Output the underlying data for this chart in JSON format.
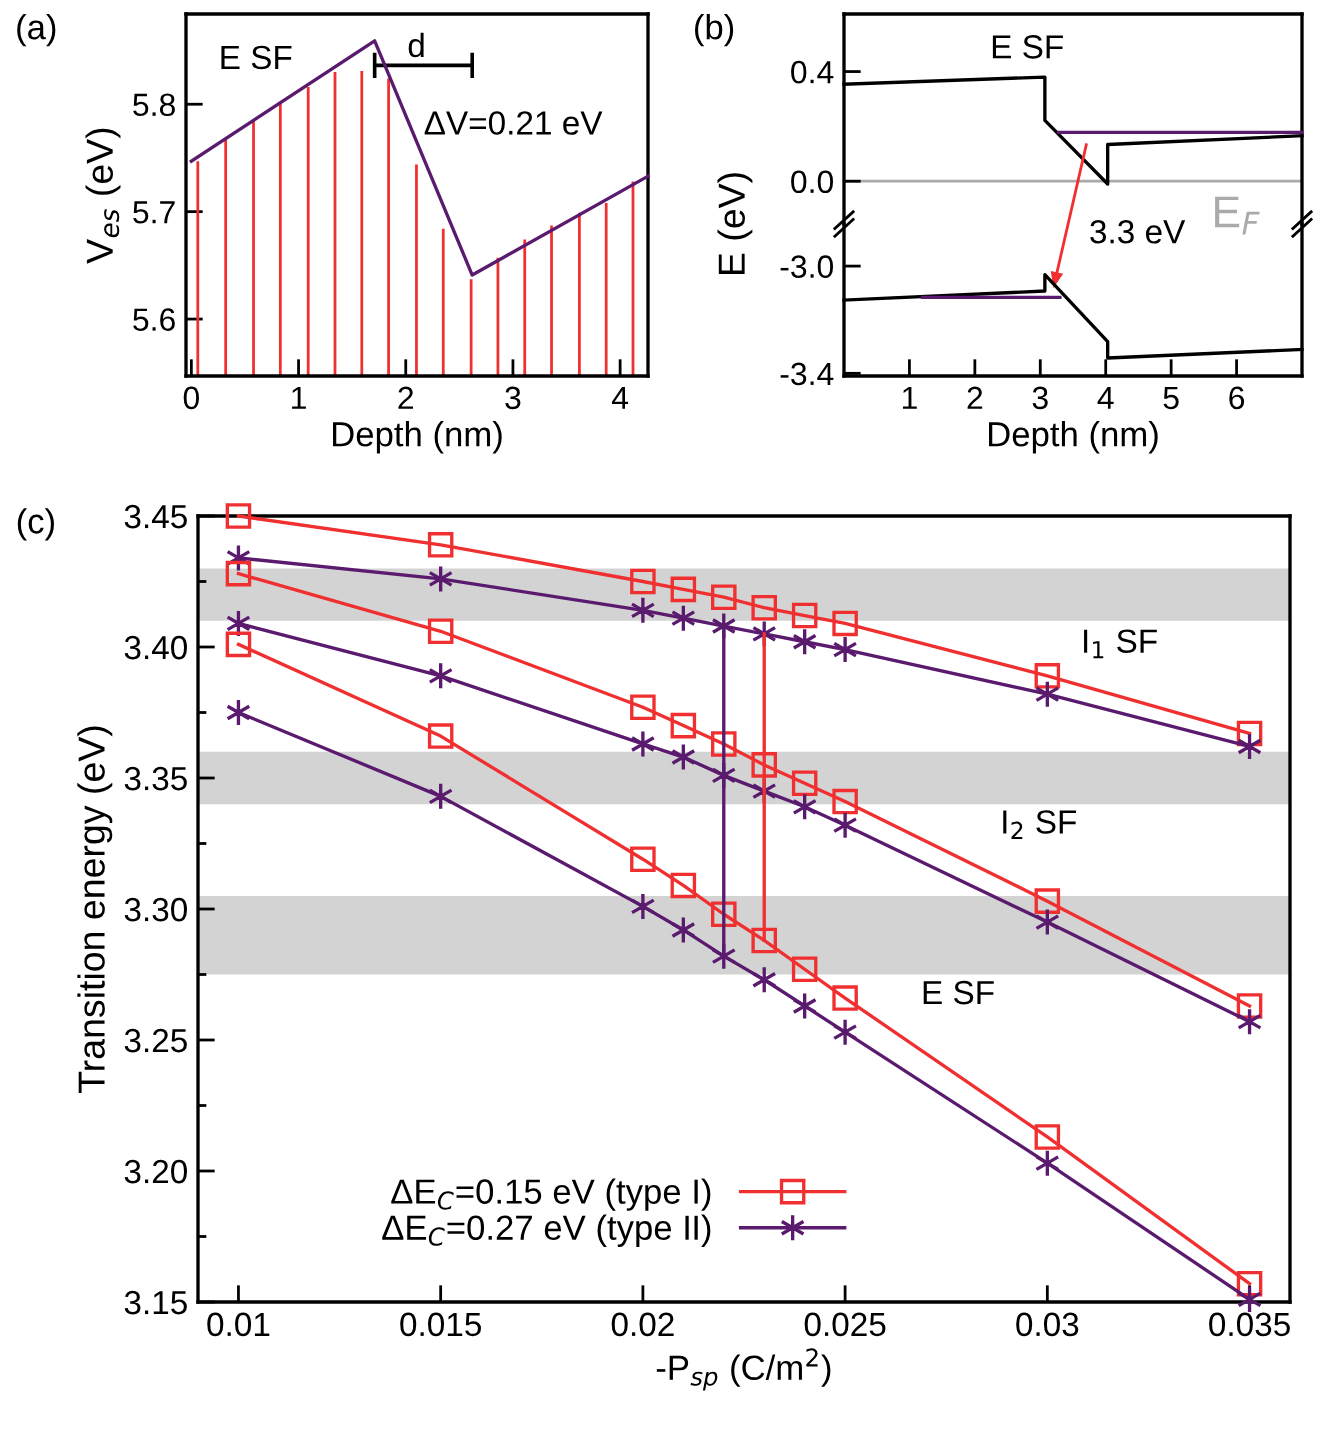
{
  "chart_data": [
    {
      "type": "bar",
      "title": "(a)",
      "xlabel": "Depth (nm)",
      "ylabel": "V$_{es}$ (eV)",
      "xlim": [
        -0.05,
        4.26
      ],
      "ylim": [
        5.547,
        5.884
      ],
      "xticks": [
        0,
        1,
        2,
        3,
        4
      ],
      "yticks": [
        5.6,
        5.7,
        5.8
      ],
      "series": [
        {
          "type": "bar",
          "color": "#f03030",
          "x": [
            0.06,
            0.32,
            0.58,
            0.83,
            1.09,
            1.34,
            1.59,
            1.84,
            2.1,
            2.35,
            2.61,
            2.86,
            3.11,
            3.36,
            3.62,
            3.87,
            4.12
          ],
          "values": [
            5.747,
            5.767,
            5.786,
            5.801,
            5.816,
            5.83,
            5.831,
            5.824,
            5.744,
            5.684,
            5.637,
            5.657,
            5.674,
            5.687,
            5.699,
            5.708,
            5.728
          ]
        },
        {
          "type": "line",
          "color": "#5a1a6e",
          "x": [
            0,
            1.71,
            2.62,
            4.26
          ],
          "values": [
            5.747,
            5.859,
            5.641,
            5.733
          ]
        }
      ],
      "annotations": [
        "E SF",
        "d",
        "ΔV=0.21 eV"
      ]
    },
    {
      "type": "line",
      "title": "(b)",
      "ylabel": "E (eV)",
      "xlim": [
        0,
        7
      ],
      "ylim": [
        -0.156,
        0.61
      ],
      "tick_labels": "y",
      "yticks": [
        {
          "value": 0.4,
          "label": "0.4"
        },
        {
          "value": 0,
          "label": "0.0"
        }
      ],
      "series": [
        {
          "color": "#000000",
          "x": [
            0,
            3.07,
            3.07,
            4.03,
            4.03,
            7
          ],
          "values": [
            0.354,
            0.38,
            0.222,
            -0.01,
            0.134,
            0.166
          ]
        },
        {
          "color": "#5a1a6e",
          "x": [
            3.28,
            7
          ],
          "values": [
            0.178,
            0.178
          ]
        }
      ],
      "ref_lines": [
        {
          "axis": "y",
          "value": 0,
          "label": "E$_{F}$",
          "color": "#aaaaaa"
        }
      ],
      "annotations": [
        "E SF"
      ]
    },
    {
      "type": "line",
      "xlabel": "Depth (nm)",
      "xlim": [
        0,
        7
      ],
      "ylim": [
        -3.41,
        -2.843
      ],
      "xticks": [
        1,
        2,
        3,
        4,
        5,
        6
      ],
      "yticks": [
        {
          "value": -3.0,
          "label": "-3.0"
        },
        {
          "value": -3.4,
          "label": "-3.4"
        }
      ],
      "series": [
        {
          "color": "#000000",
          "x": [
            0,
            3.07,
            3.07,
            4.03,
            4.03,
            7
          ],
          "values": [
            -3.127,
            -3.093,
            -3.032,
            -3.282,
            -3.343,
            -3.311
          ]
        },
        {
          "color": "#5a1a6e",
          "x": [
            1.2,
            3.3
          ],
          "values": [
            -3.117,
            -3.117
          ]
        }
      ],
      "annotations": [
        "3.3 eV"
      ]
    },
    {
      "type": "line",
      "title": "(c)",
      "xlabel": "-P$_{sp}$ (C/m$^{2}$)",
      "ylabel": "Transition energy (eV)",
      "xlim": [
        0.009,
        0.036
      ],
      "ylim": [
        3.15,
        3.45
      ],
      "xticks": [
        0.01,
        0.015,
        0.02,
        0.025,
        0.03,
        0.035
      ],
      "yticks": [
        {
          "value": 3.15,
          "label": "3.15"
        },
        {
          "value": 3.175,
          "label": null
        },
        {
          "value": 3.2,
          "label": "3.20"
        },
        {
          "value": 3.225,
          "label": null
        },
        {
          "value": 3.25,
          "label": "3.25"
        },
        {
          "value": 3.275,
          "label": null
        },
        {
          "value": 3.3,
          "label": "3.30"
        },
        {
          "value": 3.325,
          "label": null
        },
        {
          "value": 3.35,
          "label": "3.35"
        },
        {
          "value": 3.375,
          "label": null
        },
        {
          "value": 3.4,
          "label": "3.40"
        },
        {
          "value": 3.425,
          "label": null
        },
        {
          "value": 3.45,
          "label": "3.45"
        }
      ],
      "legend": "bottom",
      "x": [
        0.01,
        0.015,
        0.02,
        0.021,
        0.022,
        0.023,
        0.024,
        0.025,
        0.03,
        0.035
      ],
      "series": [
        {
          "name": "ΔE$_{C}$=0.15 eV (type I)",
          "color": "#f03030",
          "marker": "square",
          "values": [
            3.45,
            3.439,
            3.425,
            3.422,
            3.419,
            3.415,
            3.412,
            3.409,
            3.389,
            3.367
          ]
        },
        {
          "name": "ΔE$_{C}$=0.27 eV (type II)",
          "color": "#5a1a6e",
          "marker": "cross",
          "values": [
            3.434,
            3.426,
            3.414,
            3.411,
            3.408,
            3.405,
            3.402,
            3.399,
            3.382,
            3.362
          ]
        },
        {
          "color": "#f03030",
          "marker": "square",
          "values": [
            3.428,
            3.406,
            3.377,
            3.37,
            3.363,
            3.355,
            3.348,
            3.341,
            3.303,
            3.263
          ]
        },
        {
          "color": "#5a1a6e",
          "marker": "cross",
          "values": [
            3.409,
            3.389,
            3.363,
            3.358,
            3.351,
            3.345,
            3.339,
            3.332,
            3.295,
            3.257
          ]
        },
        {
          "color": "#f03030",
          "marker": "square",
          "values": [
            3.401,
            3.366,
            3.319,
            3.309,
            3.298,
            3.288,
            3.277,
            3.266,
            3.213,
            3.157
          ]
        },
        {
          "color": "#5a1a6e",
          "marker": "cross",
          "values": [
            3.375,
            3.343,
            3.301,
            3.292,
            3.282,
            3.273,
            3.263,
            3.253,
            3.203,
            3.151
          ]
        },
        {
          "color": "#5a1a6e",
          "marker": "none",
          "x": [
            0.022,
            0.022
          ],
          "values": [
            3.408,
            3.282
          ]
        },
        {
          "color": "#f03030",
          "marker": "none",
          "x": [
            0.023,
            0.023
          ],
          "values": [
            3.405,
            3.288
          ]
        }
      ],
      "bands": [
        {
          "axis": "y",
          "from": 3.41,
          "to": 3.43,
          "color": "#d3d3d3"
        },
        {
          "axis": "y",
          "from": 3.34,
          "to": 3.36,
          "color": "#d3d3d3"
        },
        {
          "axis": "y",
          "from": 3.275,
          "to": 3.305,
          "color": "#d3d3d3"
        }
      ],
      "annotations": [
        "I$_{1}$ SF",
        "I$_{2}$ SF",
        "E SF"
      ]
    }
  ]
}
